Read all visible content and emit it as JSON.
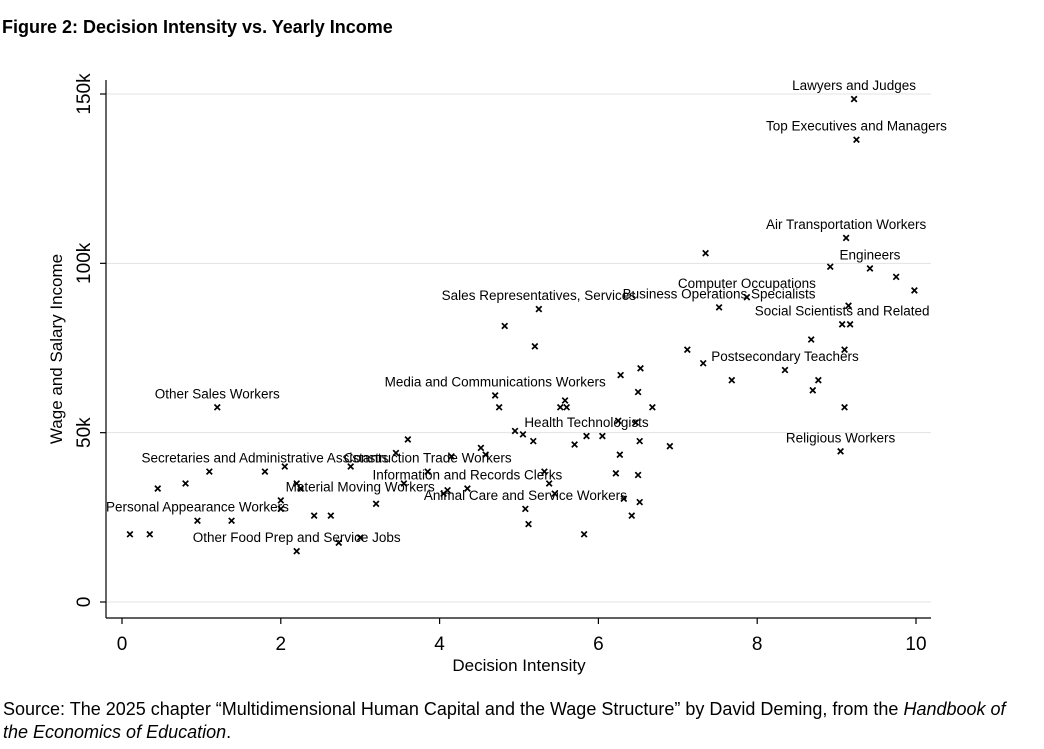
{
  "figure_title": "Figure 2: Decision Intensity vs. Yearly Income",
  "source_prefix": "Source: The 2025 chapter “Multidimensional Human Capital and the Wage Structure” by David Deming, from the",
  "source_book": "Handbook of the Economics of Education",
  "source_suffix": ".",
  "chart_data": {
    "type": "scatter",
    "title": "",
    "xlabel": "Decision Intensity",
    "ylabel": "Wage and Salary Income",
    "xlim": [
      -0.15,
      10.2
    ],
    "ylim": [
      -4000,
      155000
    ],
    "x_ticks": [
      0,
      2,
      4,
      6,
      8,
      10
    ],
    "x_tick_labels": [
      "0",
      "2",
      "4",
      "6",
      "8",
      "10"
    ],
    "y_ticks": [
      0,
      50000,
      100000,
      150000
    ],
    "y_tick_labels": [
      "0",
      "50k",
      "100k",
      "150k"
    ],
    "grid": "horizontal",
    "marker": "x",
    "marker_color": "#000000",
    "points": [
      {
        "x": 0.1,
        "y": 20000
      },
      {
        "x": 0.35,
        "y": 20000
      },
      {
        "x": 0.45,
        "y": 33500
      },
      {
        "x": 0.8,
        "y": 35000
      },
      {
        "x": 0.95,
        "y": 24000
      },
      {
        "x": 1.1,
        "y": 38500
      },
      {
        "x": 1.2,
        "y": 57500
      },
      {
        "x": 1.38,
        "y": 24000
      },
      {
        "x": 1.8,
        "y": 38500
      },
      {
        "x": 2.0,
        "y": 30000
      },
      {
        "x": 2.0,
        "y": 27500
      },
      {
        "x": 2.05,
        "y": 40000
      },
      {
        "x": 2.2,
        "y": 15000
      },
      {
        "x": 2.2,
        "y": 35000
      },
      {
        "x": 2.25,
        "y": 33500
      },
      {
        "x": 2.42,
        "y": 25500
      },
      {
        "x": 2.63,
        "y": 25500
      },
      {
        "x": 2.73,
        "y": 17500
      },
      {
        "x": 2.88,
        "y": 40000
      },
      {
        "x": 3.0,
        "y": 19000
      },
      {
        "x": 3.2,
        "y": 29000
      },
      {
        "x": 3.45,
        "y": 44000
      },
      {
        "x": 3.55,
        "y": 35000
      },
      {
        "x": 3.6,
        "y": 48000
      },
      {
        "x": 3.85,
        "y": 38500
      },
      {
        "x": 4.05,
        "y": 32000
      },
      {
        "x": 4.1,
        "y": 33000
      },
      {
        "x": 4.15,
        "y": 43000
      },
      {
        "x": 4.35,
        "y": 33500
      },
      {
        "x": 4.52,
        "y": 45500
      },
      {
        "x": 4.58,
        "y": 43500
      },
      {
        "x": 4.7,
        "y": 61000
      },
      {
        "x": 4.75,
        "y": 57500
      },
      {
        "x": 4.82,
        "y": 81500
      },
      {
        "x": 4.95,
        "y": 50500
      },
      {
        "x": 5.05,
        "y": 49500
      },
      {
        "x": 5.08,
        "y": 27500
      },
      {
        "x": 5.12,
        "y": 23000
      },
      {
        "x": 5.18,
        "y": 47500
      },
      {
        "x": 5.2,
        "y": 75500
      },
      {
        "x": 5.25,
        "y": 86500
      },
      {
        "x": 5.32,
        "y": 38500
      },
      {
        "x": 5.38,
        "y": 35000
      },
      {
        "x": 5.45,
        "y": 32000
      },
      {
        "x": 5.52,
        "y": 57500
      },
      {
        "x": 5.58,
        "y": 59500
      },
      {
        "x": 5.6,
        "y": 57500
      },
      {
        "x": 5.7,
        "y": 46500
      },
      {
        "x": 5.82,
        "y": 20000
      },
      {
        "x": 5.85,
        "y": 49000
      },
      {
        "x": 6.05,
        "y": 49000
      },
      {
        "x": 6.22,
        "y": 38000
      },
      {
        "x": 6.25,
        "y": 53500
      },
      {
        "x": 6.27,
        "y": 43500
      },
      {
        "x": 6.28,
        "y": 67000
      },
      {
        "x": 6.32,
        "y": 30500
      },
      {
        "x": 6.42,
        "y": 25500
      },
      {
        "x": 6.47,
        "y": 53000
      },
      {
        "x": 6.5,
        "y": 37500
      },
      {
        "x": 6.5,
        "y": 62000
      },
      {
        "x": 6.52,
        "y": 47500
      },
      {
        "x": 6.52,
        "y": 29500
      },
      {
        "x": 6.53,
        "y": 69000
      },
      {
        "x": 6.68,
        "y": 57500
      },
      {
        "x": 6.9,
        "y": 46000
      },
      {
        "x": 7.12,
        "y": 74500
      },
      {
        "x": 7.32,
        "y": 70500
      },
      {
        "x": 7.35,
        "y": 103000
      },
      {
        "x": 7.52,
        "y": 87000
      },
      {
        "x": 7.68,
        "y": 65500
      },
      {
        "x": 7.87,
        "y": 90000
      },
      {
        "x": 8.35,
        "y": 68500
      },
      {
        "x": 8.68,
        "y": 77500
      },
      {
        "x": 8.7,
        "y": 62500
      },
      {
        "x": 8.77,
        "y": 65500
      },
      {
        "x": 8.92,
        "y": 99000
      },
      {
        "x": 9.05,
        "y": 44500
      },
      {
        "x": 9.07,
        "y": 82000
      },
      {
        "x": 9.1,
        "y": 57500
      },
      {
        "x": 9.1,
        "y": 74500
      },
      {
        "x": 9.12,
        "y": 107500
      },
      {
        "x": 9.15,
        "y": 87500
      },
      {
        "x": 9.17,
        "y": 82000
      },
      {
        "x": 9.22,
        "y": 148500
      },
      {
        "x": 9.25,
        "y": 136500
      },
      {
        "x": 9.42,
        "y": 98500
      },
      {
        "x": 9.75,
        "y": 96000
      },
      {
        "x": 9.98,
        "y": 92000
      }
    ],
    "annotations": [
      {
        "text": "Lawyers and Judges",
        "x": 9.22,
        "y": 148500
      },
      {
        "text": "Top Executives and Managers",
        "x": 9.25,
        "y": 136500
      },
      {
        "text": "Air Transportation Workers",
        "x": 9.12,
        "y": 107500
      },
      {
        "text": "Engineers",
        "x": 9.42,
        "y": 98500
      },
      {
        "text": "Computer Occupations",
        "x": 7.87,
        "y": 90000
      },
      {
        "text": "Sales Representatives, Services",
        "x": 5.25,
        "y": 86500
      },
      {
        "text": "Business Operations Specialists",
        "x": 7.52,
        "y": 87000
      },
      {
        "text": "Social Scientists and Related",
        "x": 9.07,
        "y": 82000
      },
      {
        "text": "Postsecondary Teachers",
        "x": 8.35,
        "y": 68500
      },
      {
        "text": "Other Sales Workers",
        "x": 1.2,
        "y": 57500
      },
      {
        "text": "Media and Communications Workers",
        "x": 4.7,
        "y": 61000
      },
      {
        "text": "Health Technologists",
        "x": 5.85,
        "y": 49000
      },
      {
        "text": "Religious Workers",
        "x": 9.05,
        "y": 44500
      },
      {
        "text": "Secretaries and Administrative Assistants",
        "x": 1.8,
        "y": 38500
      },
      {
        "text": "Construction Trade Workers",
        "x": 3.85,
        "y": 38500
      },
      {
        "text": "Information and Records Clerks",
        "x": 4.35,
        "y": 33500
      },
      {
        "text": "Material Moving Workers",
        "x": 3.0,
        "y": 30000
      },
      {
        "text": "Animal Care and Service Workers",
        "x": 5.08,
        "y": 27500
      },
      {
        "text": "Personal Appearance Workers",
        "x": 0.95,
        "y": 24000
      },
      {
        "text": "Other Food Prep and Service Jobs",
        "x": 2.2,
        "y": 15000
      }
    ]
  }
}
